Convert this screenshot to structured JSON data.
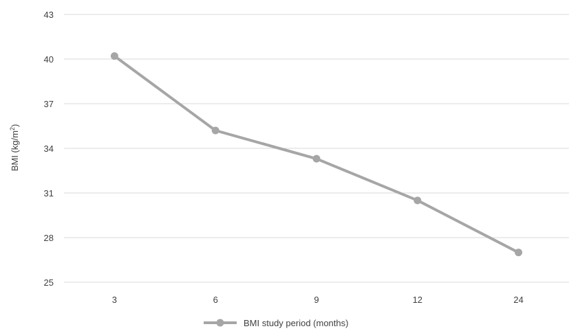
{
  "chart_data": {
    "type": "line",
    "title": "",
    "xlabel": "",
    "ylabel": "BMI (kg/m",
    "ylabel_superscript": "2",
    "ylabel_close": ")",
    "categories": [
      "3",
      "6",
      "9",
      "12",
      "24"
    ],
    "series": [
      {
        "name": "BMI study period (months)",
        "values": [
          40.2,
          35.2,
          33.3,
          30.5,
          27.0
        ],
        "color": "#a6a6a6"
      }
    ],
    "ylim": [
      25,
      43
    ],
    "yticks": [
      25,
      28,
      31,
      34,
      37,
      40,
      43
    ],
    "grid": true,
    "legend_position": "bottom"
  }
}
